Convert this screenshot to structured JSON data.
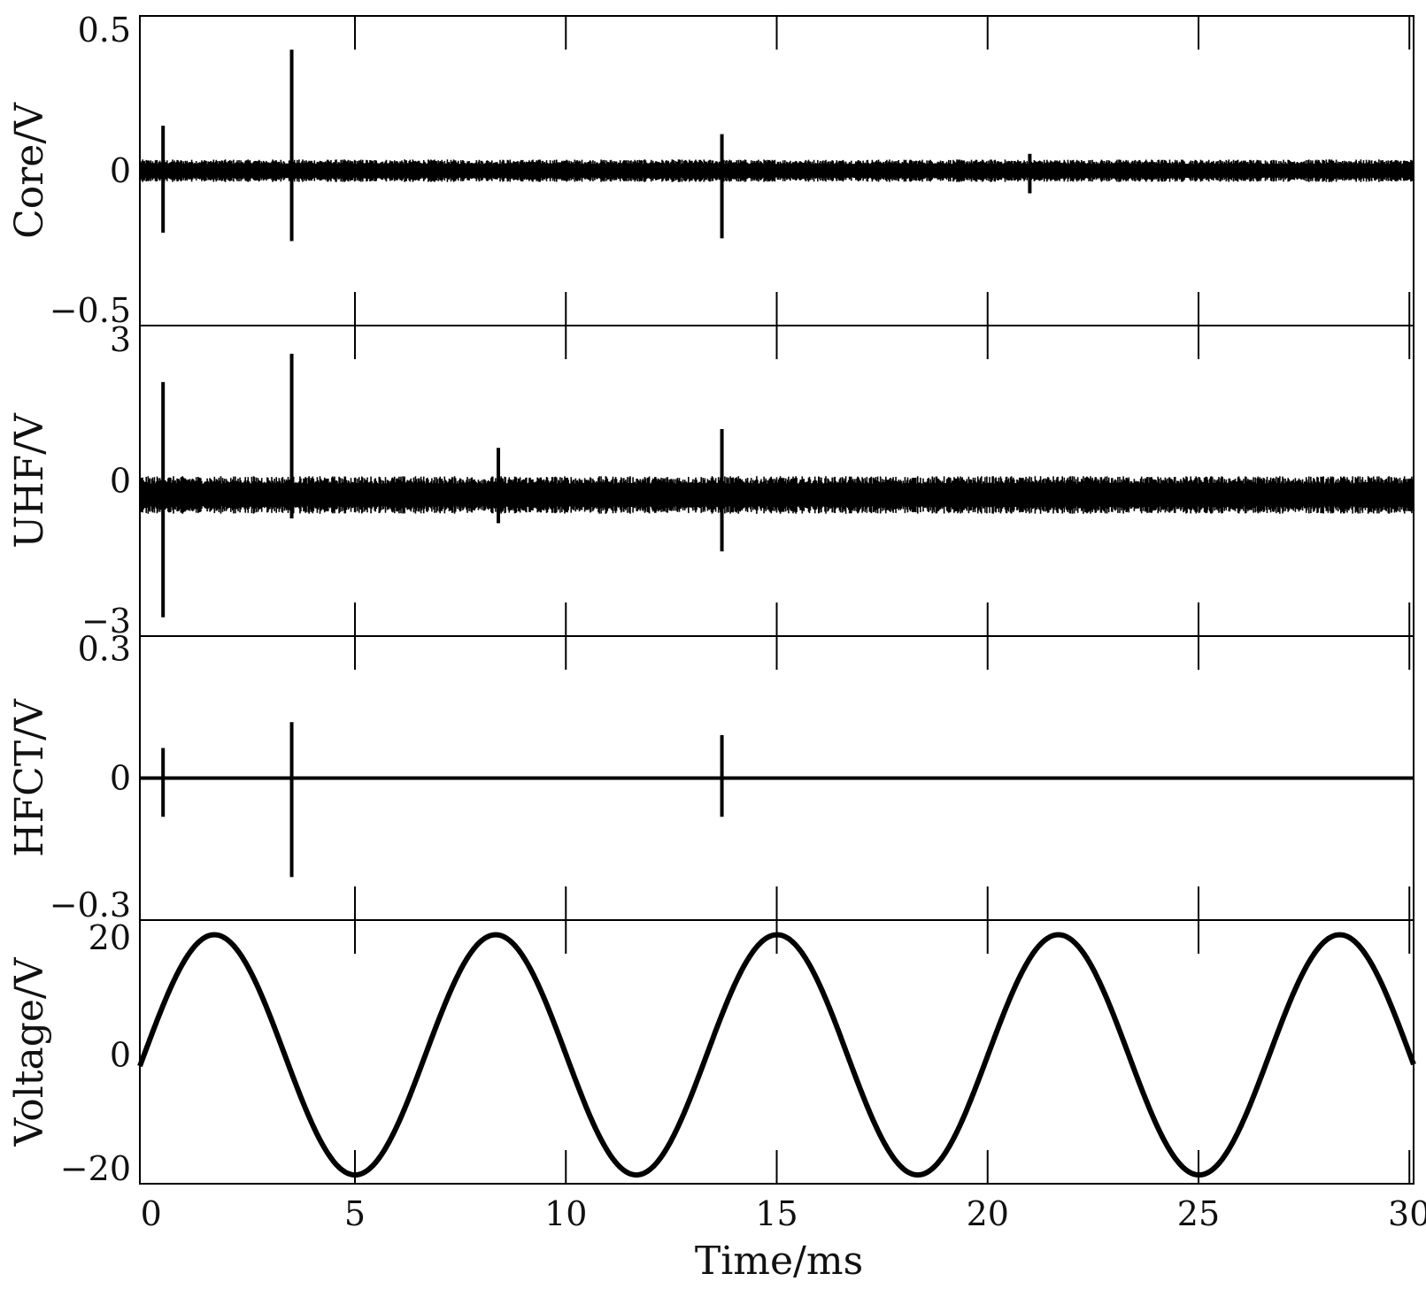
{
  "chart_data": {
    "type": "line",
    "x_label": "Time/ms",
    "x_range": [
      -0.1,
      30.1
    ],
    "x_ticks": [
      0,
      5,
      10,
      15,
      20,
      25,
      30
    ],
    "x_tick_labels": [
      "0",
      "5",
      "10",
      "15",
      "20",
      "25",
      "30"
    ],
    "line_color": "#000000",
    "grid": false,
    "panels": [
      {
        "id": "core",
        "ylabel": "Core/V",
        "ylim": [
          -0.55,
          0.55
        ],
        "yticks": [
          0.5,
          0,
          -0.5
        ],
        "ytick_labels": [
          "0.5",
          "0",
          "−0.5"
        ],
        "baseline": 0,
        "noise_amplitude": 0.04,
        "spikes": [
          {
            "t": 0.45,
            "max": 0.16,
            "min": -0.22
          },
          {
            "t": 3.5,
            "max": 0.43,
            "min": -0.25
          },
          {
            "t": 13.7,
            "max": 0.13,
            "min": -0.24
          },
          {
            "t": 21.0,
            "max": 0.06,
            "min": -0.08
          }
        ]
      },
      {
        "id": "uhf",
        "ylabel": "UHF/V",
        "ylim": [
          -3.3,
          3.3
        ],
        "yticks": [
          3,
          0,
          -3
        ],
        "ytick_labels": [
          "3",
          "0",
          "−3"
        ],
        "baseline": -0.3,
        "noise_amplitude": 0.4,
        "spikes": [
          {
            "t": 0.45,
            "max": 2.1,
            "min": -2.9
          },
          {
            "t": 3.5,
            "max": 2.7,
            "min": -0.8
          },
          {
            "t": 8.4,
            "max": 0.7,
            "min": -0.9
          },
          {
            "t": 13.7,
            "max": 1.1,
            "min": -1.5
          }
        ]
      },
      {
        "id": "hfct",
        "ylabel": "HFCT/V",
        "ylim": [
          -0.33,
          0.33
        ],
        "yticks": [
          0.3,
          0,
          -0.3
        ],
        "ytick_labels": [
          "0.3",
          "0",
          "−0.3"
        ],
        "baseline": 0,
        "noise_amplitude": 0.004,
        "spikes": [
          {
            "t": 0.45,
            "max": 0.07,
            "min": -0.09
          },
          {
            "t": 3.5,
            "max": 0.13,
            "min": -0.23
          },
          {
            "t": 13.7,
            "max": 0.1,
            "min": -0.09
          }
        ]
      },
      {
        "id": "voltage",
        "ylabel": "Voltage/V",
        "ylim": [
          -22,
          23
        ],
        "yticks": [
          20,
          0,
          -20
        ],
        "ytick_labels": [
          "20",
          "0",
          "−20"
        ],
        "sine": {
          "amplitude": 20.5,
          "period_ms": 6.67,
          "phase_ms": 0.0
        }
      }
    ]
  }
}
